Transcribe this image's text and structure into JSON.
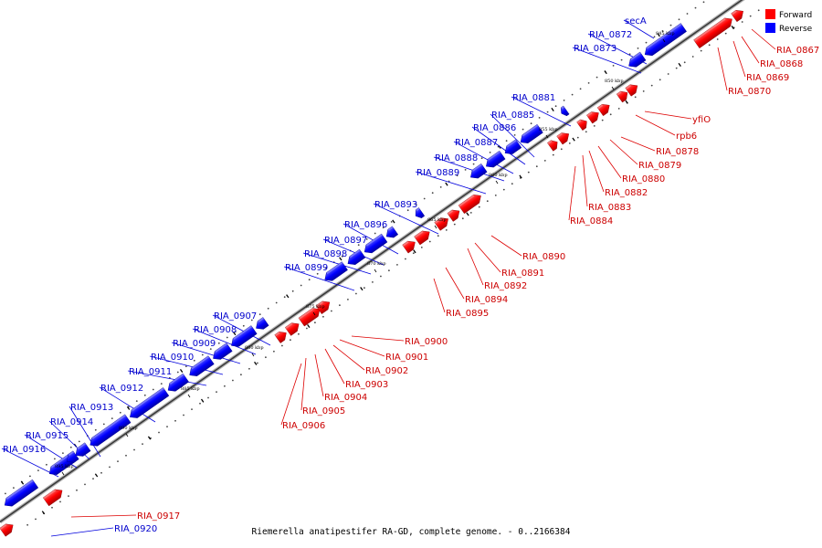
{
  "caption": "Riemerella anatipestifer RA-GD, complete genome. - 0..2166384",
  "legend": [
    {
      "label": "Forward",
      "color": "#ff0000"
    },
    {
      "label": "Reverse",
      "color": "#0000ff"
    }
  ],
  "ticks": [
    "845 kbp",
    "850 kbp",
    "855 kbp",
    "860 kbp",
    "865 kbp",
    "870 kbp",
    "875 kbp",
    "880 kbp",
    "885 kbp",
    "890 kbp",
    "895 kbp"
  ],
  "forward_genes": [
    "RIA_0867",
    "RIA_0868",
    "RIA_0869",
    "RIA_0870",
    "yfiO",
    "rpb6",
    "RIA_0878",
    "RIA_0879",
    "RIA_0880",
    "RIA_0882",
    "RIA_0883",
    "RIA_0884",
    "RIA_0890",
    "RIA_0891",
    "RIA_0892",
    "RIA_0894",
    "RIA_0895",
    "RIA_0900",
    "RIA_0901",
    "RIA_0902",
    "RIA_0903",
    "RIA_0904",
    "RIA_0905",
    "RIA_0906",
    "RIA_0917"
  ],
  "reverse_genes": [
    "secA",
    "RIA_0872",
    "RIA_0873",
    "RIA_0881",
    "RIA_0885",
    "RIA_0886",
    "RIA_0887",
    "RIA_0888",
    "RIA_0889",
    "RIA_0893",
    "RIA_0896",
    "RIA_0897",
    "RIA_0898",
    "RIA_0899",
    "RIA_0907",
    "RIA_0908",
    "RIA_0909",
    "RIA_0910",
    "RIA_0911",
    "RIA_0912",
    "RIA_0913",
    "RIA_0914",
    "RIA_0915",
    "RIA_0916",
    "RIA_0920"
  ]
}
